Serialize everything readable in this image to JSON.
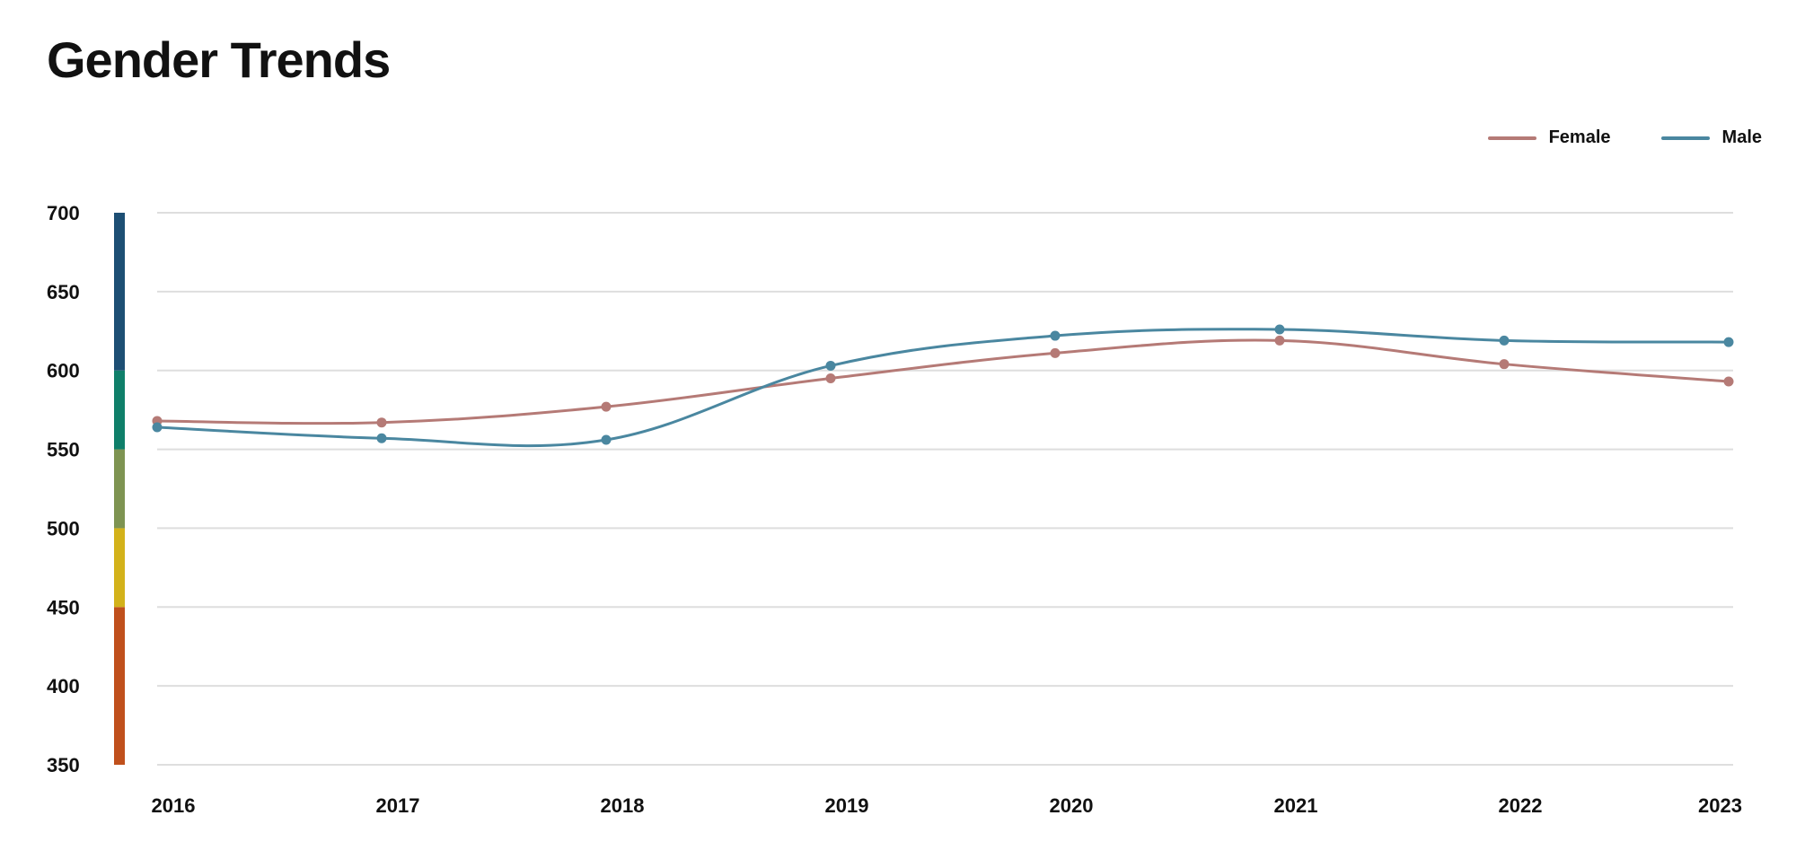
{
  "title": "Gender Trends",
  "legend": {
    "female": {
      "label": "Female",
      "color": "#b57a76"
    },
    "male": {
      "label": "Male",
      "color": "#4a87a0"
    }
  },
  "chart_data": {
    "type": "line",
    "title": "Gender Trends",
    "x": [
      "2016",
      "2017",
      "2018",
      "2019",
      "2020",
      "2021",
      "2022",
      "2023"
    ],
    "series": [
      {
        "name": "Female",
        "color": "#b57a76",
        "values": [
          568,
          567,
          577,
          595,
          611,
          619,
          604,
          593
        ]
      },
      {
        "name": "Male",
        "color": "#4a87a0",
        "values": [
          564,
          557,
          556,
          603,
          622,
          626,
          619,
          618
        ]
      }
    ],
    "yticks": [
      "350",
      "400",
      "450",
      "500",
      "550",
      "600",
      "650",
      "700"
    ],
    "ylim": [
      350,
      700
    ],
    "grid": true,
    "legend_position": "top-right",
    "color_band": [
      {
        "from": 350,
        "to": 450,
        "color": "#c0501c"
      },
      {
        "from": 450,
        "to": 500,
        "color": "#d3b21a"
      },
      {
        "from": 500,
        "to": 550,
        "color": "#7e9452"
      },
      {
        "from": 550,
        "to": 600,
        "color": "#0f7f6a"
      },
      {
        "from": 600,
        "to": 700,
        "color": "#1d4f74"
      }
    ]
  }
}
